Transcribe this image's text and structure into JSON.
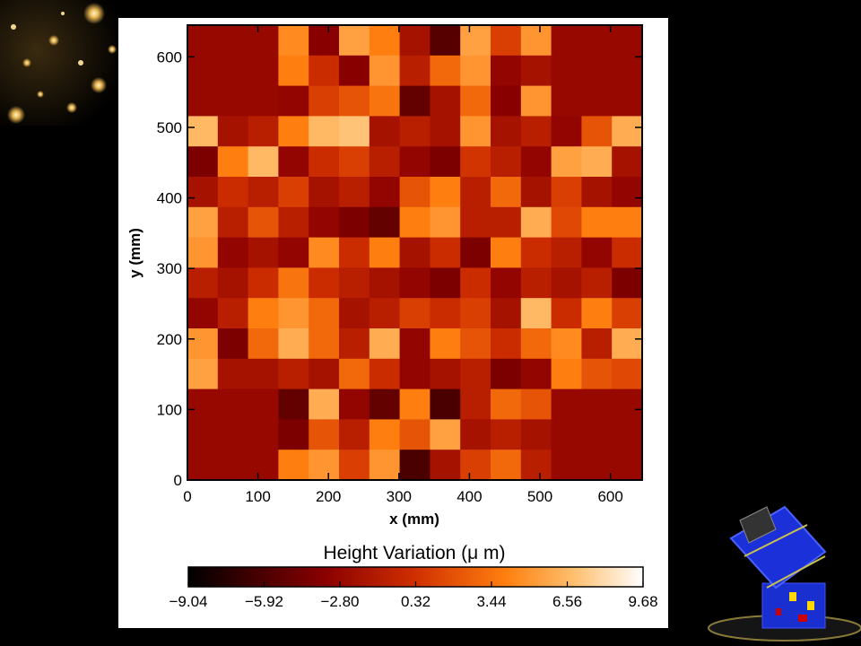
{
  "chart_data": {
    "type": "heatmap",
    "title": "",
    "xlabel": "x (mm)",
    "ylabel": "y (mm)",
    "xlim": [
      0,
      645
    ],
    "ylim": [
      0,
      645
    ],
    "xticks": [
      "0",
      "100",
      "200",
      "300",
      "400",
      "500",
      "600"
    ],
    "yticks": [
      "0",
      "100",
      "200",
      "300",
      "400",
      "500",
      "600"
    ],
    "colorbar": {
      "title": "Height Variation (μ m)",
      "ticks": [
        "−9.04",
        "−5.92",
        "−2.80",
        "0.32",
        "3.44",
        "6.56",
        "9.68"
      ],
      "range": [
        -9.04,
        9.68
      ]
    },
    "grid": {
      "rows": 15,
      "cols": 15,
      "row_order": "top-to-bottom",
      "cell_size_mm": 43,
      "values": [
        [
          null,
          null,
          null,
          4.5,
          -3.5,
          5.5,
          4,
          -2,
          -5.5,
          5.5,
          1,
          5,
          null,
          null,
          null
        ],
        [
          null,
          null,
          null,
          4,
          0,
          -3.5,
          5,
          -1,
          3,
          5,
          -3,
          -2,
          null,
          null,
          null
        ],
        [
          null,
          null,
          null,
          -3,
          1,
          2,
          3.5,
          -5,
          -2,
          3,
          -3.5,
          5,
          null,
          null,
          null
        ],
        [
          6.5,
          -2,
          -1,
          4,
          6.5,
          7,
          -2,
          -1,
          -2,
          5,
          -2,
          -1,
          -3,
          2,
          6
        ],
        [
          -4,
          4,
          6.5,
          -3,
          0,
          1,
          -1,
          -3,
          -4,
          0.5,
          -1,
          -3,
          5.5,
          6,
          -2
        ],
        [
          -2,
          0,
          -1,
          1,
          -2,
          -1,
          -3,
          2,
          4,
          -1,
          3,
          -2,
          1,
          -2,
          -3
        ],
        [
          5.5,
          -1,
          2,
          -1,
          -3,
          -4,
          -5,
          4,
          5,
          -1,
          -1,
          6,
          1.5,
          4,
          4
        ],
        [
          5,
          -3,
          -2,
          -3,
          4.5,
          0,
          4,
          -2,
          0,
          -4,
          4,
          0,
          -1,
          -3,
          0
        ],
        [
          -1,
          -2,
          0,
          3.5,
          0,
          -1,
          -2,
          -3,
          -4,
          0,
          -3,
          -1,
          -2,
          -1,
          -4
        ],
        [
          -3,
          -1,
          4,
          5,
          3,
          -2,
          -1,
          1,
          0,
          1,
          -2,
          6.5,
          0,
          4,
          1
        ],
        [
          5,
          -4,
          3,
          6,
          3,
          -1,
          6,
          -3,
          4,
          2,
          0,
          3,
          4.5,
          -1,
          6
        ],
        [
          5.5,
          -2,
          -2,
          -1,
          -2,
          3,
          0,
          -3,
          -2,
          -1,
          -4,
          -3,
          4,
          2,
          1.5
        ],
        [
          null,
          null,
          null,
          -5,
          6,
          -3,
          -5,
          4,
          -6,
          -1,
          3,
          2,
          null,
          null,
          null
        ],
        [
          null,
          null,
          null,
          -4,
          2,
          -1,
          4,
          2,
          5.5,
          -2,
          -1,
          -2,
          null,
          null,
          null
        ],
        [
          null,
          null,
          null,
          4,
          5,
          1,
          5,
          -6,
          -2,
          1,
          3,
          -1,
          null,
          null,
          null
        ]
      ],
      "mask_value": -2.8
    }
  }
}
